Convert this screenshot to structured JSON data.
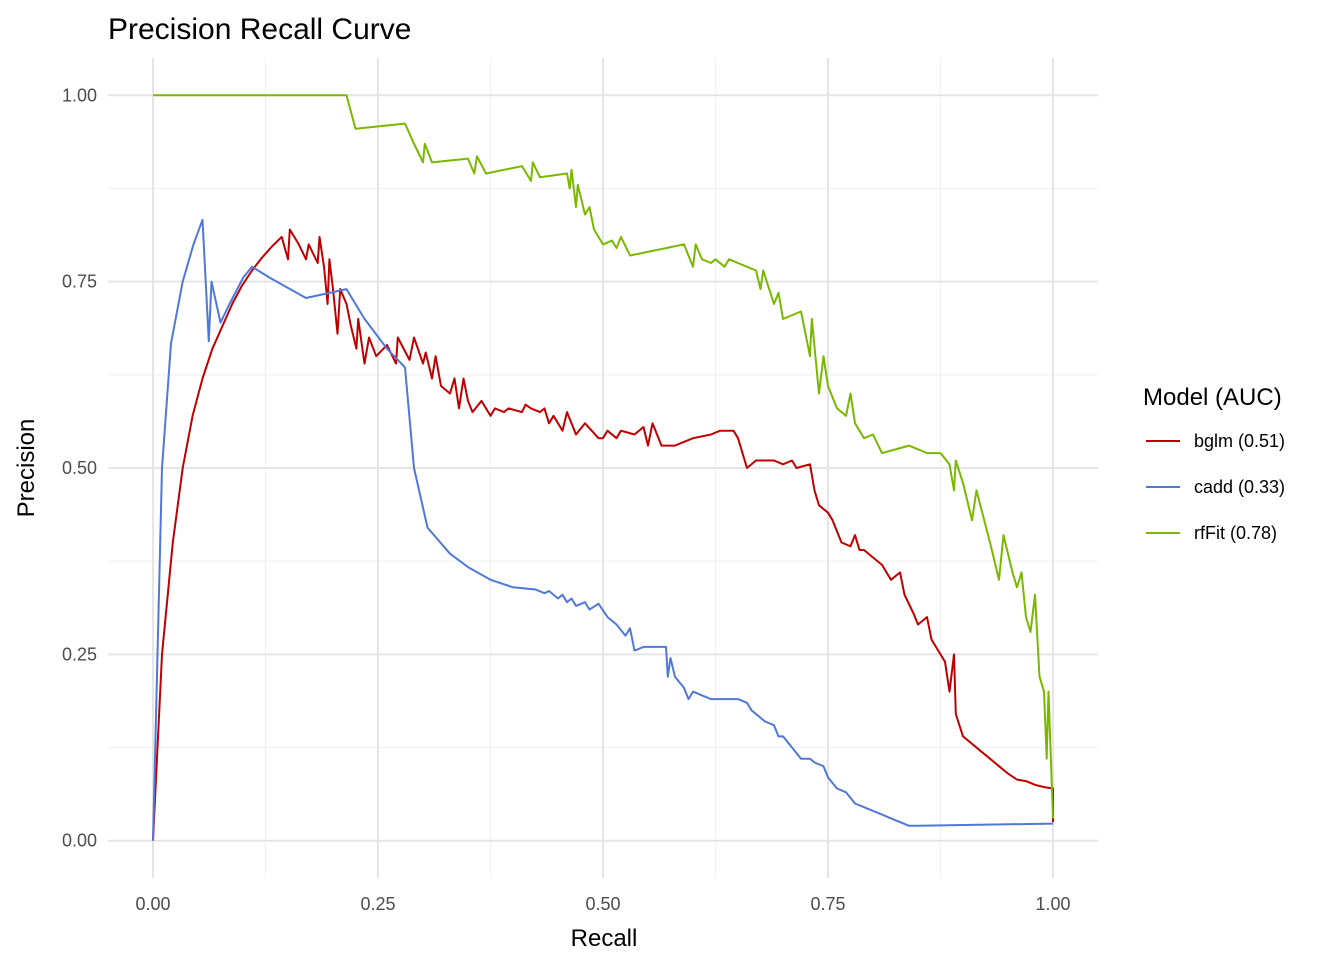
{
  "chart_data": {
    "type": "line",
    "title": "Precision Recall Curve",
    "xlabel": "Recall",
    "ylabel": "Precision",
    "xlim": [
      -0.05,
      1.05
    ],
    "ylim": [
      -0.05,
      1.05
    ],
    "x_ticks": [
      0,
      0.25,
      0.5,
      0.75,
      1
    ],
    "x_tick_labels": [
      "0.00",
      "0.25",
      "0.50",
      "0.75",
      "1.00"
    ],
    "y_ticks": [
      0,
      0.25,
      0.5,
      0.75,
      1
    ],
    "y_tick_labels": [
      "0.00",
      "0.25",
      "0.50",
      "0.75",
      "1.00"
    ],
    "grid": true,
    "legend": {
      "title": "Model (AUC)",
      "position": "right",
      "entries": [
        "bglm (0.51)",
        "cadd (0.33)",
        "rfFit (0.78)"
      ]
    },
    "series": [
      {
        "name": "bglm (0.51)",
        "color": "#c00000",
        "points": [
          [
            0,
            0
          ],
          [
            0.01,
            0.25
          ],
          [
            0.022,
            0.4
          ],
          [
            0.033,
            0.5
          ],
          [
            0.044,
            0.57
          ],
          [
            0.055,
            0.62
          ],
          [
            0.066,
            0.66
          ],
          [
            0.077,
            0.69
          ],
          [
            0.088,
            0.72
          ],
          [
            0.099,
            0.745
          ],
          [
            0.11,
            0.765
          ],
          [
            0.121,
            0.782
          ],
          [
            0.132,
            0.797
          ],
          [
            0.143,
            0.81
          ],
          [
            0.15,
            0.78
          ],
          [
            0.152,
            0.82
          ],
          [
            0.162,
            0.8
          ],
          [
            0.17,
            0.78
          ],
          [
            0.173,
            0.8
          ],
          [
            0.183,
            0.775
          ],
          [
            0.185,
            0.81
          ],
          [
            0.19,
            0.77
          ],
          [
            0.194,
            0.72
          ],
          [
            0.196,
            0.78
          ],
          [
            0.2,
            0.74
          ],
          [
            0.205,
            0.68
          ],
          [
            0.208,
            0.74
          ],
          [
            0.215,
            0.72
          ],
          [
            0.22,
            0.69
          ],
          [
            0.226,
            0.66
          ],
          [
            0.228,
            0.7
          ],
          [
            0.235,
            0.64
          ],
          [
            0.24,
            0.675
          ],
          [
            0.248,
            0.65
          ],
          [
            0.26,
            0.665
          ],
          [
            0.27,
            0.64
          ],
          [
            0.272,
            0.675
          ],
          [
            0.285,
            0.645
          ],
          [
            0.29,
            0.675
          ],
          [
            0.3,
            0.64
          ],
          [
            0.303,
            0.655
          ],
          [
            0.31,
            0.62
          ],
          [
            0.314,
            0.65
          ],
          [
            0.32,
            0.61
          ],
          [
            0.33,
            0.6
          ],
          [
            0.335,
            0.62
          ],
          [
            0.34,
            0.58
          ],
          [
            0.345,
            0.62
          ],
          [
            0.35,
            0.59
          ],
          [
            0.355,
            0.575
          ],
          [
            0.365,
            0.59
          ],
          [
            0.375,
            0.57
          ],
          [
            0.38,
            0.58
          ],
          [
            0.39,
            0.575
          ],
          [
            0.395,
            0.58
          ],
          [
            0.41,
            0.575
          ],
          [
            0.414,
            0.585
          ],
          [
            0.42,
            0.58
          ],
          [
            0.43,
            0.575
          ],
          [
            0.435,
            0.58
          ],
          [
            0.44,
            0.56
          ],
          [
            0.445,
            0.57
          ],
          [
            0.455,
            0.55
          ],
          [
            0.46,
            0.575
          ],
          [
            0.47,
            0.545
          ],
          [
            0.48,
            0.56
          ],
          [
            0.495,
            0.54
          ],
          [
            0.5,
            0.54
          ],
          [
            0.505,
            0.55
          ],
          [
            0.515,
            0.54
          ],
          [
            0.52,
            0.55
          ],
          [
            0.535,
            0.545
          ],
          [
            0.545,
            0.555
          ],
          [
            0.55,
            0.53
          ],
          [
            0.555,
            0.56
          ],
          [
            0.565,
            0.53
          ],
          [
            0.58,
            0.53
          ],
          [
            0.6,
            0.54
          ],
          [
            0.62,
            0.545
          ],
          [
            0.63,
            0.55
          ],
          [
            0.645,
            0.55
          ],
          [
            0.65,
            0.54
          ],
          [
            0.66,
            0.5
          ],
          [
            0.67,
            0.51
          ],
          [
            0.69,
            0.51
          ],
          [
            0.7,
            0.505
          ],
          [
            0.71,
            0.51
          ],
          [
            0.715,
            0.5
          ],
          [
            0.73,
            0.505
          ],
          [
            0.735,
            0.47
          ],
          [
            0.74,
            0.45
          ],
          [
            0.75,
            0.44
          ],
          [
            0.755,
            0.43
          ],
          [
            0.765,
            0.4
          ],
          [
            0.775,
            0.395
          ],
          [
            0.78,
            0.41
          ],
          [
            0.785,
            0.39
          ],
          [
            0.79,
            0.39
          ],
          [
            0.8,
            0.38
          ],
          [
            0.81,
            0.37
          ],
          [
            0.82,
            0.35
          ],
          [
            0.83,
            0.36
          ],
          [
            0.835,
            0.33
          ],
          [
            0.845,
            0.305
          ],
          [
            0.85,
            0.29
          ],
          [
            0.86,
            0.3
          ],
          [
            0.865,
            0.27
          ],
          [
            0.875,
            0.25
          ],
          [
            0.88,
            0.24
          ],
          [
            0.885,
            0.2
          ],
          [
            0.89,
            0.25
          ],
          [
            0.892,
            0.17
          ],
          [
            0.9,
            0.14
          ],
          [
            0.91,
            0.13
          ],
          [
            0.92,
            0.12
          ],
          [
            0.93,
            0.11
          ],
          [
            0.94,
            0.1
          ],
          [
            0.95,
            0.09
          ],
          [
            0.96,
            0.082
          ],
          [
            0.97,
            0.08
          ],
          [
            0.98,
            0.075
          ],
          [
            0.99,
            0.072
          ],
          [
            1,
            0.07
          ],
          [
            1,
            0.025
          ]
        ]
      },
      {
        "name": "cadd (0.33)",
        "color": "#5078d8",
        "points": [
          [
            0,
            0
          ],
          [
            0.01,
            0.5
          ],
          [
            0.02,
            0.667
          ],
          [
            0.033,
            0.75
          ],
          [
            0.045,
            0.8
          ],
          [
            0.055,
            0.833
          ],
          [
            0.062,
            0.67
          ],
          [
            0.065,
            0.75
          ],
          [
            0.075,
            0.695
          ],
          [
            0.085,
            0.72
          ],
          [
            0.1,
            0.755
          ],
          [
            0.11,
            0.77
          ],
          [
            0.13,
            0.755
          ],
          [
            0.17,
            0.728
          ],
          [
            0.215,
            0.74
          ],
          [
            0.235,
            0.7
          ],
          [
            0.26,
            0.66
          ],
          [
            0.28,
            0.635
          ],
          [
            0.29,
            0.5
          ],
          [
            0.305,
            0.42
          ],
          [
            0.33,
            0.385
          ],
          [
            0.35,
            0.367
          ],
          [
            0.375,
            0.35
          ],
          [
            0.4,
            0.34
          ],
          [
            0.425,
            0.337
          ],
          [
            0.435,
            0.332
          ],
          [
            0.44,
            0.335
          ],
          [
            0.45,
            0.325
          ],
          [
            0.455,
            0.33
          ],
          [
            0.46,
            0.32
          ],
          [
            0.465,
            0.325
          ],
          [
            0.47,
            0.315
          ],
          [
            0.48,
            0.32
          ],
          [
            0.485,
            0.31
          ],
          [
            0.495,
            0.318
          ],
          [
            0.505,
            0.3
          ],
          [
            0.515,
            0.29
          ],
          [
            0.525,
            0.275
          ],
          [
            0.53,
            0.285
          ],
          [
            0.535,
            0.255
          ],
          [
            0.545,
            0.26
          ],
          [
            0.57,
            0.26
          ],
          [
            0.572,
            0.22
          ],
          [
            0.575,
            0.245
          ],
          [
            0.58,
            0.22
          ],
          [
            0.59,
            0.205
          ],
          [
            0.595,
            0.19
          ],
          [
            0.6,
            0.2
          ],
          [
            0.61,
            0.195
          ],
          [
            0.62,
            0.19
          ],
          [
            0.65,
            0.19
          ],
          [
            0.66,
            0.185
          ],
          [
            0.665,
            0.175
          ],
          [
            0.67,
            0.17
          ],
          [
            0.68,
            0.16
          ],
          [
            0.69,
            0.155
          ],
          [
            0.695,
            0.14
          ],
          [
            0.7,
            0.14
          ],
          [
            0.71,
            0.125
          ],
          [
            0.72,
            0.11
          ],
          [
            0.73,
            0.11
          ],
          [
            0.735,
            0.105
          ],
          [
            0.745,
            0.1
          ],
          [
            0.75,
            0.085
          ],
          [
            0.76,
            0.07
          ],
          [
            0.77,
            0.065
          ],
          [
            0.78,
            0.05
          ],
          [
            0.79,
            0.045
          ],
          [
            0.8,
            0.04
          ],
          [
            0.81,
            0.035
          ],
          [
            0.82,
            0.03
          ],
          [
            0.83,
            0.025
          ],
          [
            0.84,
            0.02
          ],
          [
            0.85,
            0.02
          ],
          [
            1,
            0.023
          ]
        ]
      },
      {
        "name": "rfFit (0.78)",
        "color": "#7ab800",
        "points": [
          [
            0,
            1
          ],
          [
            0.215,
            1
          ],
          [
            0.225,
            0.955
          ],
          [
            0.28,
            0.962
          ],
          [
            0.29,
            0.935
          ],
          [
            0.3,
            0.91
          ],
          [
            0.302,
            0.935
          ],
          [
            0.31,
            0.91
          ],
          [
            0.35,
            0.915
          ],
          [
            0.357,
            0.895
          ],
          [
            0.36,
            0.918
          ],
          [
            0.37,
            0.895
          ],
          [
            0.41,
            0.905
          ],
          [
            0.42,
            0.885
          ],
          [
            0.422,
            0.91
          ],
          [
            0.43,
            0.89
          ],
          [
            0.46,
            0.895
          ],
          [
            0.463,
            0.875
          ],
          [
            0.465,
            0.9
          ],
          [
            0.47,
            0.85
          ],
          [
            0.472,
            0.88
          ],
          [
            0.48,
            0.84
          ],
          [
            0.485,
            0.85
          ],
          [
            0.49,
            0.82
          ],
          [
            0.5,
            0.8
          ],
          [
            0.51,
            0.805
          ],
          [
            0.515,
            0.795
          ],
          [
            0.52,
            0.81
          ],
          [
            0.53,
            0.785
          ],
          [
            0.59,
            0.8
          ],
          [
            0.6,
            0.77
          ],
          [
            0.603,
            0.8
          ],
          [
            0.61,
            0.78
          ],
          [
            0.62,
            0.775
          ],
          [
            0.625,
            0.78
          ],
          [
            0.635,
            0.77
          ],
          [
            0.64,
            0.78
          ],
          [
            0.67,
            0.765
          ],
          [
            0.675,
            0.74
          ],
          [
            0.678,
            0.765
          ],
          [
            0.69,
            0.72
          ],
          [
            0.695,
            0.735
          ],
          [
            0.7,
            0.7
          ],
          [
            0.72,
            0.71
          ],
          [
            0.73,
            0.65
          ],
          [
            0.732,
            0.7
          ],
          [
            0.74,
            0.6
          ],
          [
            0.745,
            0.65
          ],
          [
            0.75,
            0.61
          ],
          [
            0.76,
            0.58
          ],
          [
            0.77,
            0.57
          ],
          [
            0.775,
            0.6
          ],
          [
            0.78,
            0.56
          ],
          [
            0.79,
            0.54
          ],
          [
            0.8,
            0.545
          ],
          [
            0.81,
            0.52
          ],
          [
            0.84,
            0.53
          ],
          [
            0.86,
            0.52
          ],
          [
            0.875,
            0.52
          ],
          [
            0.885,
            0.505
          ],
          [
            0.89,
            0.47
          ],
          [
            0.892,
            0.51
          ],
          [
            0.9,
            0.48
          ],
          [
            0.91,
            0.43
          ],
          [
            0.915,
            0.47
          ],
          [
            0.93,
            0.4
          ],
          [
            0.94,
            0.35
          ],
          [
            0.945,
            0.41
          ],
          [
            0.955,
            0.36
          ],
          [
            0.96,
            0.34
          ],
          [
            0.965,
            0.36
          ],
          [
            0.97,
            0.3
          ],
          [
            0.975,
            0.28
          ],
          [
            0.98,
            0.33
          ],
          [
            0.985,
            0.22
          ],
          [
            0.99,
            0.2
          ],
          [
            0.993,
            0.11
          ],
          [
            0.995,
            0.2
          ],
          [
            1,
            0.03
          ]
        ]
      }
    ]
  }
}
